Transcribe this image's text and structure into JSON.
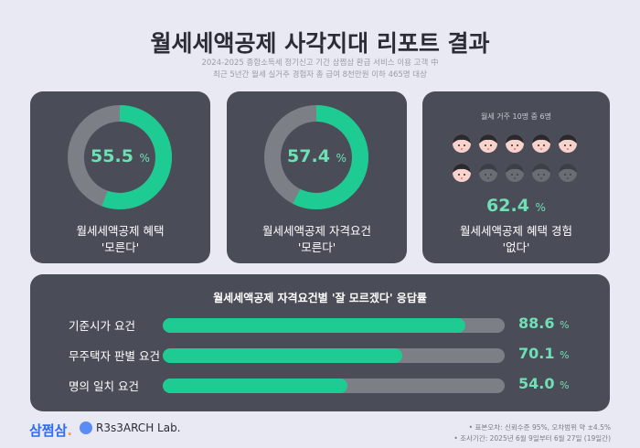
{
  "header": {
    "title": "월세세액공제 사각지대 리포트 결과",
    "sub1": "2024-2025 종합소득세 정기신고 기간 삼쩜삼 환급 서비스 이용 고객 中",
    "sub2": "최근 5년간 월세 실거주 경험자 총 급여 8천만원 이하 465명 대상"
  },
  "cards": [
    {
      "value": "55.5",
      "unit": "%",
      "percent": 55.5,
      "line1": "월세세액공제 혜택",
      "line2": "'모른다'"
    },
    {
      "value": "57.4",
      "unit": "%",
      "percent": 57.4,
      "line1": "월세세액공제 자격요건",
      "line2": "'모른다'"
    },
    {
      "caption": "월세 거주 10명 중 6명",
      "highlighted_count": 6,
      "total_count": 10,
      "value": "62.4",
      "unit": "%",
      "line1": "월세세액공제 혜택 경험",
      "line2": "'없다'"
    }
  ],
  "bars": {
    "title": "월세세액공제 자격요건별 '잘 모르겠다' 응답률",
    "items": [
      {
        "label": "기준시가 요건",
        "value": "88.6",
        "percent": 88.6,
        "unit": "%"
      },
      {
        "label": "무주택자 판별 요건",
        "value": "70.1",
        "percent": 70.1,
        "unit": "%"
      },
      {
        "label": "명의 일치 요건",
        "value": "54.0",
        "percent": 54.0,
        "unit": "%"
      }
    ]
  },
  "footer": {
    "logo1": "삼쩜삼",
    "logo2": "R3s3ARCH Lab.",
    "note1": "• 표본오차: 신뢰수준 95%, 오차범위 약 ±4.5%",
    "note2": "• 조사기간: 2025년 6월 9일부터 6월 27일 (19일간)"
  },
  "colors": {
    "accent": "#1ecb93",
    "track": "#7d7f86",
    "card": "#4a4d57",
    "background": "#e8e9f3"
  }
}
